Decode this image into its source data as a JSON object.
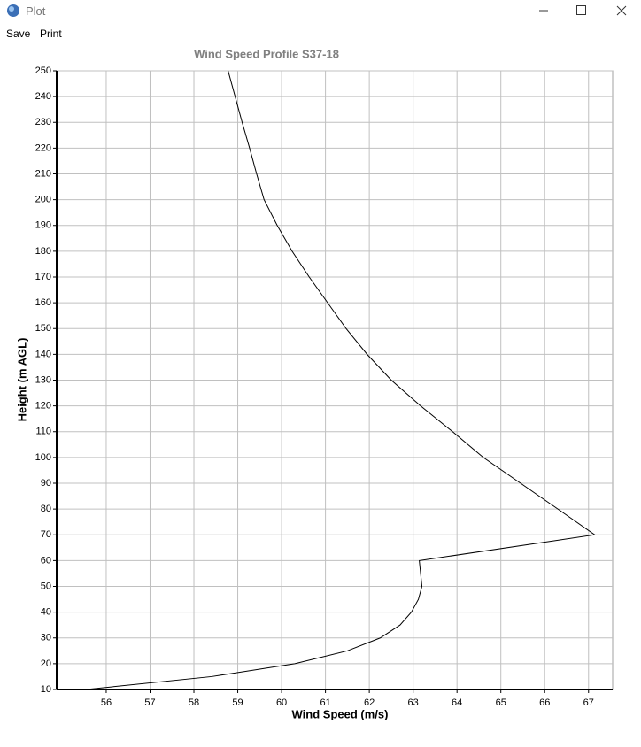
{
  "window": {
    "title": "Plot",
    "menu": [
      "Save",
      "Print"
    ]
  },
  "chart_data": {
    "type": "line",
    "title": "Wind Speed Profile S37-18",
    "x_label": "Wind Speed (m/s)",
    "y_label": "Height (m AGL)",
    "series": [
      {
        "color": "#000000",
        "x": [
          55.54,
          58.4,
          60.3,
          61.5,
          62.25,
          62.7,
          62.96,
          63.12,
          63.2,
          63.14,
          67.14,
          66.3,
          65.45,
          64.6,
          63.9,
          63.17,
          62.5,
          61.95,
          61.47,
          61.05,
          60.63,
          60.24,
          59.9,
          59.6,
          59.43,
          59.27,
          59.1,
          58.94,
          58.78
        ],
        "values": [
          10,
          15,
          20,
          25,
          30,
          35,
          40,
          45,
          50,
          60,
          70,
          80,
          90,
          100,
          110,
          120,
          130,
          140,
          150,
          160,
          170,
          180,
          190,
          200,
          210,
          220,
          230,
          240,
          250
        ]
      }
    ],
    "xlim": [
      54.87,
      67.55
    ],
    "xticks": [
      56,
      57,
      58,
      59,
      60,
      61,
      62,
      63,
      64,
      65,
      66,
      67
    ],
    "ylim": [
      10,
      250
    ],
    "yticks": [
      10,
      20,
      30,
      40,
      50,
      60,
      70,
      80,
      90,
      100,
      110,
      120,
      130,
      140,
      150,
      160,
      170,
      180,
      190,
      200,
      210,
      220,
      230,
      240,
      250
    ],
    "grid": true
  }
}
